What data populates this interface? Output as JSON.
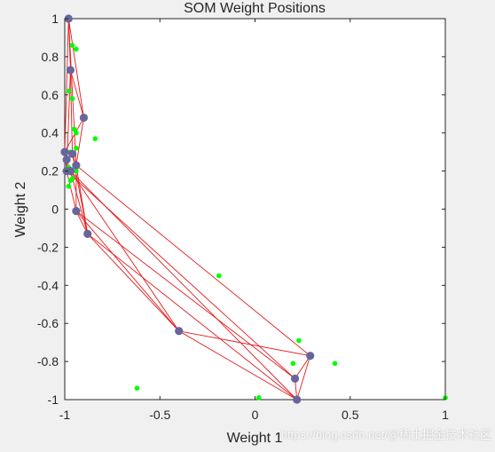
{
  "watermark": "https://blog.csdn.net/@稀土掘金技术社区",
  "colors": {
    "figure_bg": "#f0f0f0",
    "axes_bg": "#ffffff",
    "neuron": "#66669b",
    "edge": "#e31a1c",
    "input": "#00ff00",
    "axis": "#262626"
  },
  "chart_data": {
    "type": "scatter",
    "title": "SOM Weight Positions",
    "xlabel": "Weight 1",
    "ylabel": "Weight 2",
    "xlim": [
      -1,
      1
    ],
    "ylim": [
      -1,
      1
    ],
    "grid": false,
    "x_ticks": [
      "-1",
      "-0.5",
      "0",
      "0.5",
      "1"
    ],
    "y_ticks": [
      "-1",
      "-0.8",
      "-0.6",
      "-0.4",
      "-0.2",
      "0",
      "0.2",
      "0.4",
      "0.6",
      "0.8",
      "1"
    ],
    "x_tick_values": [
      -1,
      -0.5,
      0,
      0.5,
      1
    ],
    "y_tick_values": [
      -1,
      -0.8,
      -0.6,
      -0.4,
      -0.2,
      0,
      0.2,
      0.4,
      0.6,
      0.8,
      1
    ],
    "series": [
      {
        "kind": "input_points",
        "points": [
          [
            -0.98,
            1.0
          ],
          [
            -0.96,
            0.86
          ],
          [
            -0.94,
            0.84
          ],
          [
            -0.98,
            0.62
          ],
          [
            -0.96,
            0.58
          ],
          [
            -0.95,
            0.42
          ],
          [
            -0.94,
            0.4
          ],
          [
            -0.84,
            0.37
          ],
          [
            -0.94,
            0.32
          ],
          [
            -0.97,
            0.3
          ],
          [
            -0.98,
            0.22
          ],
          [
            -0.96,
            0.2
          ],
          [
            -0.94,
            0.2
          ],
          [
            -0.97,
            0.15
          ],
          [
            -0.96,
            0.16
          ],
          [
            -0.98,
            0.12
          ],
          [
            -0.19,
            -0.35
          ],
          [
            0.23,
            -0.69
          ],
          [
            0.2,
            -0.81
          ],
          [
            0.42,
            -0.81
          ],
          [
            -0.62,
            -0.94
          ],
          [
            0.02,
            -0.99
          ],
          [
            1.0,
            -0.99
          ]
        ]
      },
      {
        "kind": "neurons",
        "points": [
          [
            -0.98,
            1.0
          ],
          [
            -0.97,
            0.73
          ],
          [
            -0.9,
            0.48
          ],
          [
            -1.0,
            0.3
          ],
          [
            -0.96,
            0.29
          ],
          [
            -0.99,
            0.26
          ],
          [
            -0.94,
            0.23
          ],
          [
            -0.99,
            0.2
          ],
          [
            -0.97,
            0.2
          ],
          [
            -0.94,
            -0.01
          ],
          [
            -0.88,
            -0.13
          ],
          [
            -0.4,
            -0.64
          ],
          [
            0.29,
            -0.77
          ],
          [
            0.21,
            -0.89
          ],
          [
            0.22,
            -1.0
          ]
        ],
        "edges": [
          [
            0,
            1
          ],
          [
            0,
            2
          ],
          [
            0,
            3
          ],
          [
            0,
            6
          ],
          [
            1,
            2
          ],
          [
            1,
            4
          ],
          [
            1,
            7
          ],
          [
            2,
            3
          ],
          [
            2,
            6
          ],
          [
            3,
            4
          ],
          [
            3,
            5
          ],
          [
            3,
            7
          ],
          [
            4,
            5
          ],
          [
            4,
            6
          ],
          [
            5,
            7
          ],
          [
            5,
            8
          ],
          [
            6,
            8
          ],
          [
            6,
            9
          ],
          [
            6,
            10
          ],
          [
            7,
            9
          ],
          [
            8,
            10
          ],
          [
            8,
            11
          ],
          [
            9,
            10
          ],
          [
            9,
            13
          ],
          [
            10,
            11
          ],
          [
            10,
            14
          ],
          [
            11,
            12
          ],
          [
            11,
            14
          ],
          [
            12,
            13
          ],
          [
            12,
            14
          ],
          [
            13,
            14
          ],
          [
            6,
            12
          ],
          [
            7,
            13
          ],
          [
            8,
            14
          ],
          [
            9,
            11
          ],
          [
            4,
            10
          ]
        ]
      }
    ]
  }
}
